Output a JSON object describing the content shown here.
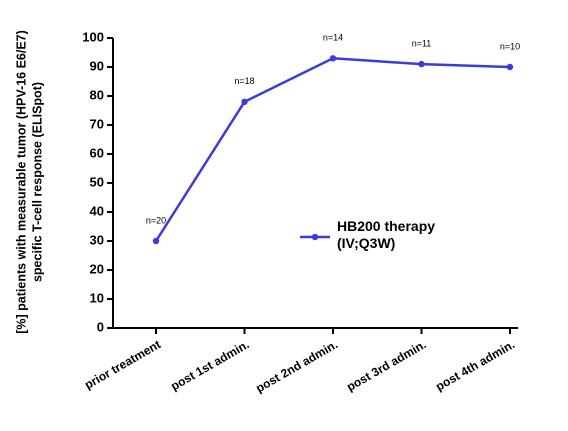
{
  "chart_data": {
    "type": "line",
    "y_label_lines": [
      "[%] patients with measurable tumor (HPV-16 E6/E7)",
      "specific T-cell response (ELISpot)"
    ],
    "categories": [
      "prior treatment",
      "post 1st admin.",
      "post 2nd admin.",
      "post 3rd admin.",
      "post 4th admin."
    ],
    "series": [
      {
        "name": "HB200 therapy (IV;Q3W)",
        "color": "#3b3bdb",
        "values": [
          30,
          78,
          93,
          91,
          90
        ],
        "point_labels": [
          "n=20",
          "n=18",
          "n=14",
          "n=11",
          "n=10"
        ]
      }
    ],
    "ylim": [
      0,
      100
    ],
    "yticks": [
      0,
      10,
      20,
      30,
      40,
      50,
      60,
      70,
      80,
      90,
      100
    ],
    "grid": false
  }
}
